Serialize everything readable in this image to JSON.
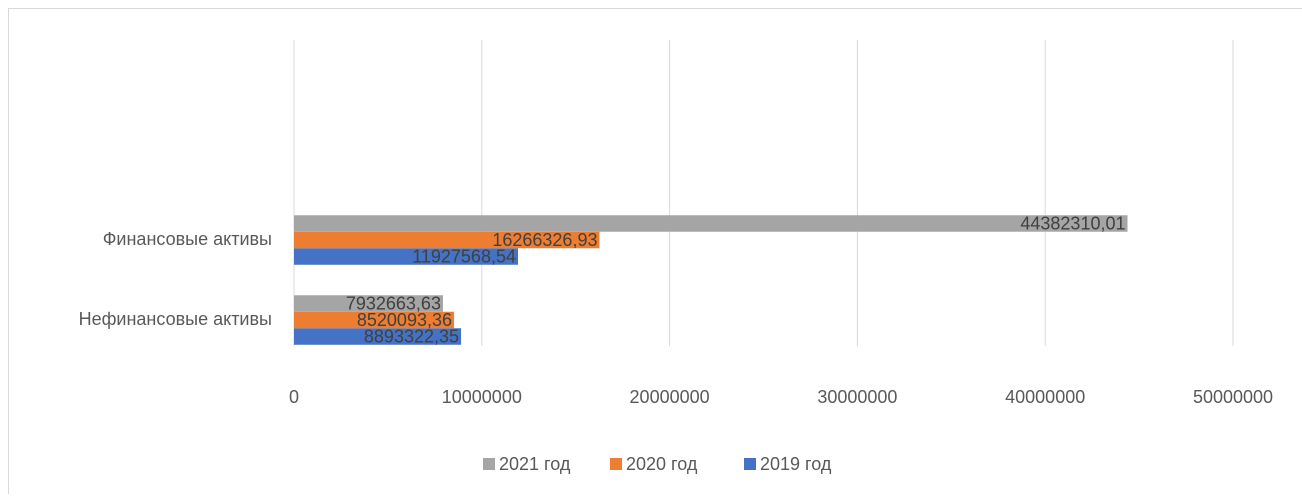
{
  "chart_data": {
    "type": "barh",
    "categories": [
      "Нефинансовые активы",
      "Финансовые активы"
    ],
    "series": [
      {
        "name": "2019 год",
        "color": "#4472c4",
        "values": [
          8893322.35,
          11927568.54
        ],
        "value_labels": [
          "8893322,35",
          "11927568,54"
        ]
      },
      {
        "name": "2020 год",
        "color": "#ed7d31",
        "values": [
          8520093.36,
          16266326.93
        ],
        "value_labels": [
          "8520093,36",
          "16266326,93"
        ]
      },
      {
        "name": "2021 год",
        "color": "#a5a5a5",
        "values": [
          7932663.63,
          44382310.01
        ],
        "value_labels": [
          "7932663,63",
          "44382310,01"
        ]
      }
    ],
    "xlim": [
      0,
      50000000
    ],
    "xticks": [
      0,
      10000000,
      20000000,
      30000000,
      40000000,
      50000000
    ],
    "grid": true,
    "legend": "bottom"
  }
}
